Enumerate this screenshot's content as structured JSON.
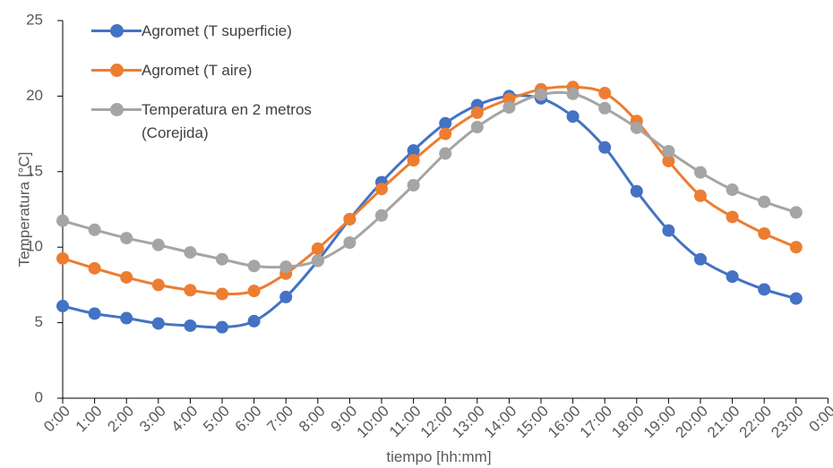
{
  "chart_data": {
    "type": "line",
    "xlabel": "tiempo [hh:mm]",
    "ylabel": "Temperatura [°C]",
    "categories": [
      "0:00",
      "1:00",
      "2:00",
      "3:00",
      "4:00",
      "5:00",
      "6:00",
      "7:00",
      "8:00",
      "9:00",
      "10:00",
      "11:00",
      "12:00",
      "13:00",
      "14:00",
      "15:00",
      "16:00",
      "17:00",
      "18:00",
      "19:00",
      "20:00",
      "21:00",
      "22:00",
      "23:00",
      "0:00"
    ],
    "ylim": [
      0,
      25
    ],
    "yticks": [
      0,
      5,
      10,
      15,
      20,
      25
    ],
    "grid": false,
    "legend": "upper left",
    "smooth": true,
    "series": [
      {
        "name": "Agromet (T superficie)",
        "color": "#4472c4",
        "values": [
          6.1,
          5.6,
          5.3,
          4.95,
          4.8,
          4.7,
          5.1,
          6.7,
          9.1,
          11.85,
          14.3,
          16.4,
          18.2,
          19.4,
          20.0,
          19.85,
          18.65,
          16.6,
          13.7,
          11.1,
          9.2,
          8.05,
          7.2,
          6.6,
          null
        ]
      },
      {
        "name": "Agromet (T aire)",
        "color": "#ed7d31",
        "values": [
          9.25,
          8.6,
          8.0,
          7.5,
          7.15,
          6.9,
          7.1,
          8.25,
          9.9,
          11.85,
          13.85,
          15.75,
          17.5,
          18.9,
          19.8,
          20.45,
          20.6,
          20.2,
          18.35,
          15.7,
          13.4,
          12.0,
          10.9,
          10.0,
          null
        ]
      },
      {
        "name": "Temperatura en 2 metros (Corejida)",
        "color": "#a5a5a5",
        "values": [
          11.75,
          11.15,
          10.6,
          10.15,
          9.65,
          9.2,
          8.75,
          8.7,
          9.1,
          10.3,
          12.1,
          14.1,
          16.2,
          17.95,
          19.25,
          20.1,
          20.15,
          19.2,
          17.9,
          16.35,
          14.95,
          13.8,
          13.0,
          12.3,
          null
        ]
      }
    ]
  }
}
